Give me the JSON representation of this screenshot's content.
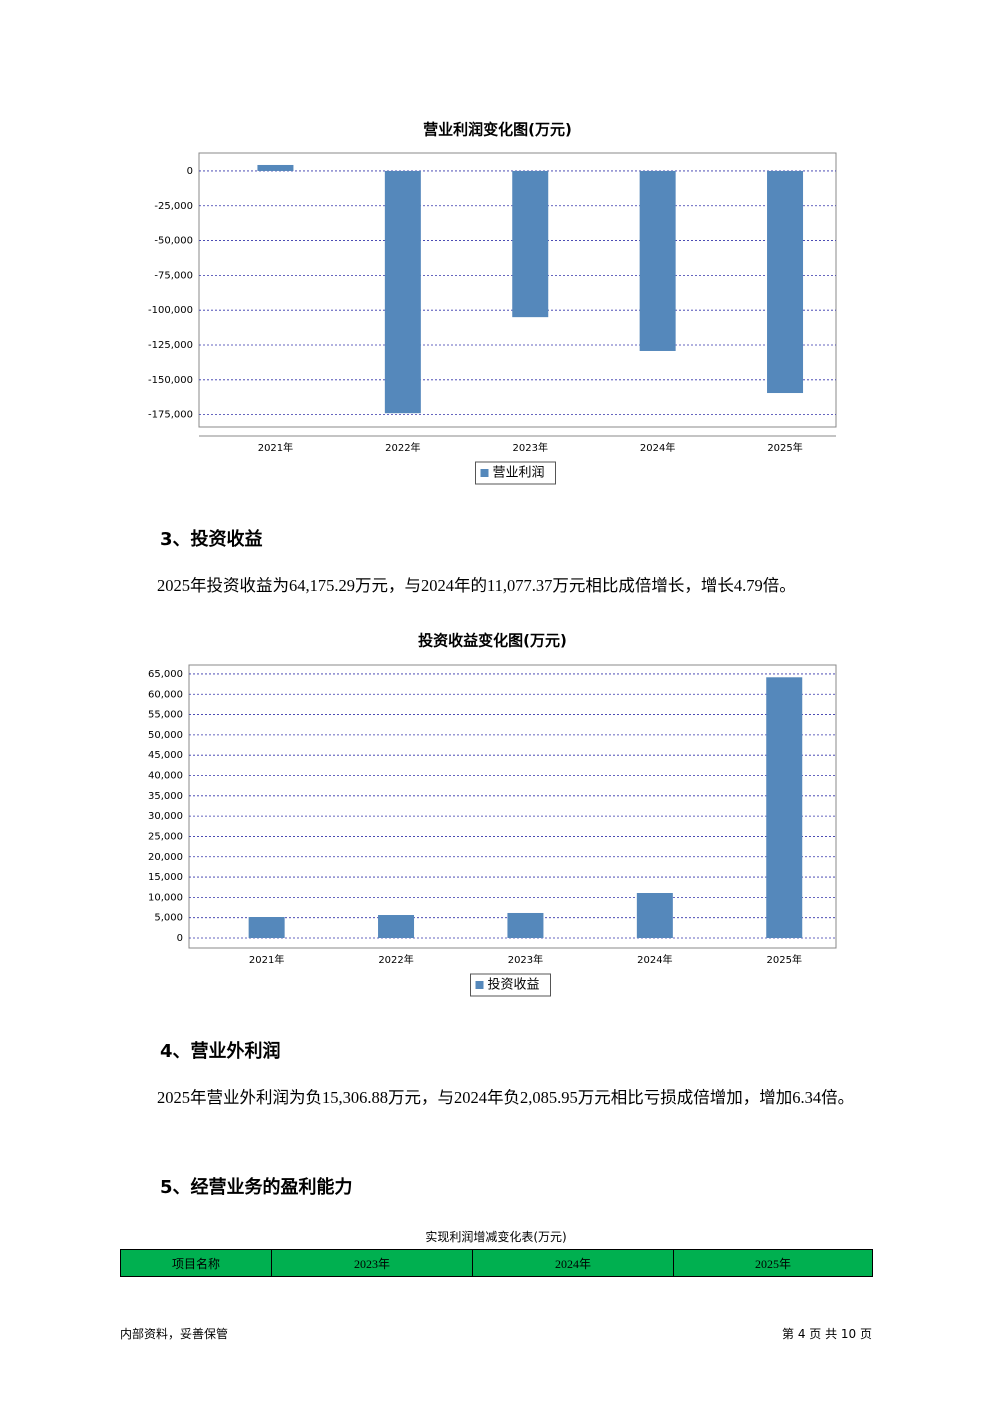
{
  "chart_data": [
    {
      "type": "bar",
      "title": "营业利润变化图(万元)",
      "categories": [
        "2021年",
        "2022年",
        "2023年",
        "2024年",
        "2025年"
      ],
      "series": [
        {
          "name": "营业利润",
          "color": "#5588bb",
          "values": [
            4300,
            -174000,
            -105000,
            -129300,
            -159500
          ]
        }
      ],
      "ylim": [
        -183900,
        12900
      ],
      "yticks": [
        0,
        {
          "value": -25000,
          "label": "-25,000"
        },
        {
          "value": -50000,
          "label": "-50,000"
        },
        {
          "value": -75000,
          "label": "-75,000"
        },
        {
          "value": -100000,
          "label": "-100,000"
        },
        {
          "value": -125000,
          "label": "-125,000"
        },
        {
          "value": -150000,
          "label": "-150,000"
        },
        {
          "value": -175000,
          "label": "-175,000"
        }
      ],
      "grid": true,
      "legend": "bottom"
    },
    {
      "type": "bar",
      "title": "投资收益变化图(万元)",
      "categories": [
        "2021年",
        "2022年",
        "2023年",
        "2024年",
        "2025年"
      ],
      "series": [
        {
          "name": "投资收益",
          "color": "#5588bb",
          "values": [
            5170,
            5660,
            6160,
            11077.37,
            64175.29
          ]
        }
      ],
      "ylim": [
        -2460,
        67200
      ],
      "yticks": [
        0,
        {
          "value": 5000,
          "label": "5,000"
        },
        {
          "value": 10000,
          "label": "10,000"
        },
        {
          "value": 15000,
          "label": "15,000"
        },
        {
          "value": 20000,
          "label": "20,000"
        },
        {
          "value": 25000,
          "label": "25,000"
        },
        {
          "value": 30000,
          "label": "30,000"
        },
        {
          "value": 35000,
          "label": "35,000"
        },
        {
          "value": 40000,
          "label": "40,000"
        },
        {
          "value": 45000,
          "label": "45,000"
        },
        {
          "value": 50000,
          "label": "50,000"
        },
        {
          "value": 55000,
          "label": "55,000"
        },
        {
          "value": 60000,
          "label": "60,000"
        },
        {
          "value": 65000,
          "label": "65,000"
        }
      ],
      "grid": true,
      "legend": "bottom"
    }
  ],
  "sections": [
    {
      "heading": "3、投资收益",
      "text": "2025年投资收益为64,175.29万元，与2024年的11,077.37万元相比成倍增长，增长4.79倍。"
    },
    {
      "heading": "4、营业外利润",
      "text": "2025年营业外利润为负15,306.88万元，与2024年负2,085.95万元相比亏损成倍增加，增加6.34倍。"
    },
    {
      "heading": "5、经营业务的盈利能力"
    }
  ],
  "table": {
    "caption": "实现利润增减变化表(万元)",
    "header": [
      "项目名称",
      "2023年",
      "2024年",
      "2025年"
    ]
  },
  "footer": {
    "left": "内部资料，妥善保管",
    "right": "第 4 页 共 10 页"
  }
}
